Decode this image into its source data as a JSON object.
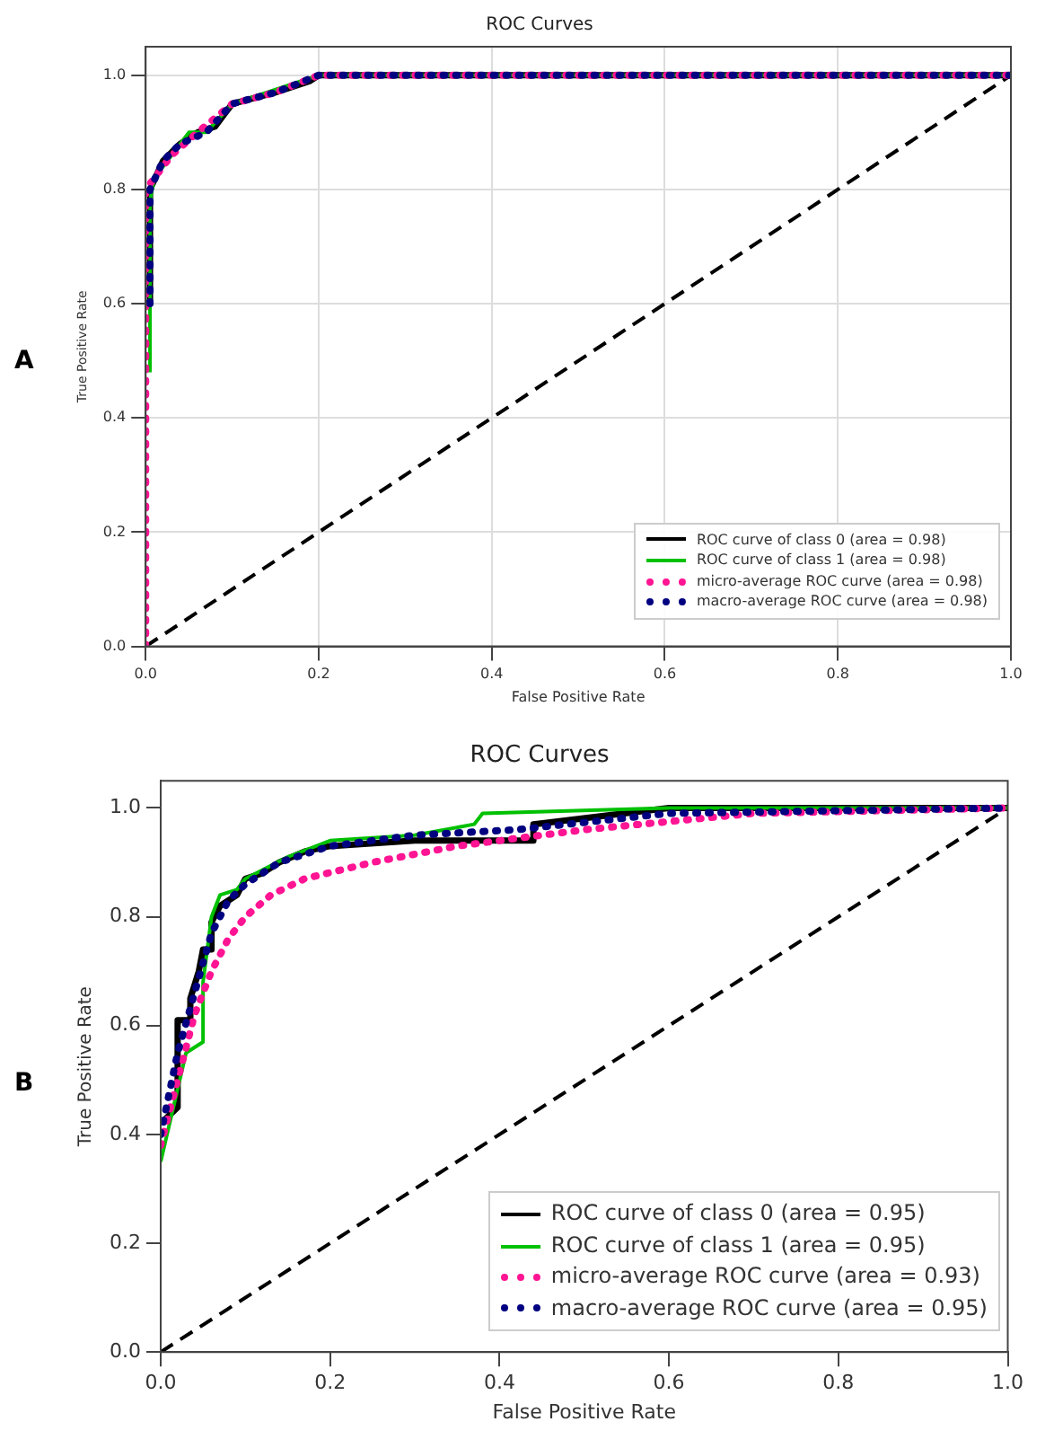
{
  "chart_data": [
    {
      "type": "line",
      "title": "ROC Curves",
      "xlabel": "False Positive Rate",
      "ylabel": "True Positive Rate",
      "annotations": [
        "A"
      ],
      "xlim": [
        0,
        1
      ],
      "ylim": [
        0,
        1.05
      ],
      "xticks": [
        {
          "value": 0,
          "label": "0.0"
        },
        {
          "value": 0.2,
          "label": "0.2"
        },
        {
          "value": 0.4,
          "label": "0.4"
        },
        {
          "value": 0.6,
          "label": "0.6"
        },
        {
          "value": 0.8,
          "label": "0.8"
        },
        {
          "value": 1,
          "label": "1.0"
        }
      ],
      "yticks": [
        {
          "value": 0,
          "label": "0.0"
        },
        {
          "value": 0.2,
          "label": "0.2"
        },
        {
          "value": 0.4,
          "label": "0.4"
        },
        {
          "value": 0.6,
          "label": "0.6"
        },
        {
          "value": 0.8,
          "label": "0.8"
        },
        {
          "value": 1,
          "label": "1.0"
        }
      ],
      "grid": true,
      "legend": "bottom right",
      "marker": "none",
      "series": [
        {
          "name": "ROC curve of class 0 (area = 0.98)",
          "color": "#000000",
          "line_style": "solid",
          "x": [
            0,
            0.005,
            0.005,
            0.02,
            0.04,
            0.06,
            0.08,
            0.1,
            0.15,
            0.19,
            0.2,
            1
          ],
          "values": [
            0.6,
            0.6,
            0.8,
            0.85,
            0.88,
            0.9,
            0.91,
            0.95,
            0.97,
            0.99,
            1,
            1
          ]
        },
        {
          "name": "ROC curve of class 1 (area = 0.98)",
          "color": "#00c000",
          "line_style": "solid",
          "x": [
            0.005,
            0.005,
            0.01,
            0.03,
            0.05,
            0.07,
            0.1,
            0.14,
            0.18,
            0.2,
            1
          ],
          "values": [
            0.48,
            0.78,
            0.82,
            0.86,
            0.9,
            0.9,
            0.95,
            0.97,
            0.99,
            1,
            1
          ]
        },
        {
          "name": "micro-average ROC curve (area = 0.98)",
          "color": "#ff1493",
          "line_style": "dotted",
          "x": [
            0,
            0,
            0.01,
            0.03,
            0.06,
            0.1,
            0.15,
            0.2,
            1
          ],
          "values": [
            0,
            0.8,
            0.82,
            0.86,
            0.9,
            0.95,
            0.97,
            1,
            1
          ]
        },
        {
          "name": "macro-average ROC curve (area = 0.98)",
          "color": "#000080",
          "line_style": "dotted",
          "x": [
            0.005,
            0.005,
            0.02,
            0.04,
            0.07,
            0.1,
            0.15,
            0.2,
            1
          ],
          "values": [
            0.6,
            0.8,
            0.85,
            0.88,
            0.9,
            0.95,
            0.97,
            1,
            1
          ]
        },
        {
          "color": "#000000",
          "line_style": "dashed",
          "x": [
            0,
            1
          ],
          "values": [
            0,
            1
          ]
        }
      ]
    },
    {
      "type": "line",
      "title": "ROC Curves",
      "xlabel": "False Positive Rate",
      "ylabel": "True Positive Rate",
      "annotations": [
        "B"
      ],
      "xlim": [
        0,
        1
      ],
      "ylim": [
        0,
        1.05
      ],
      "xticks": [
        {
          "value": 0,
          "label": "0.0"
        },
        {
          "value": 0.2,
          "label": "0.2"
        },
        {
          "value": 0.4,
          "label": "0.4"
        },
        {
          "value": 0.6,
          "label": "0.6"
        },
        {
          "value": 0.8,
          "label": "0.8"
        },
        {
          "value": 1,
          "label": "1.0"
        }
      ],
      "yticks": [
        {
          "value": 0,
          "label": "0.0"
        },
        {
          "value": 0.2,
          "label": "0.2"
        },
        {
          "value": 0.4,
          "label": "0.4"
        },
        {
          "value": 0.6,
          "label": "0.6"
        },
        {
          "value": 0.8,
          "label": "0.8"
        },
        {
          "value": 1,
          "label": "1.0"
        }
      ],
      "grid": false,
      "legend": "bottom right",
      "marker": "none",
      "series": [
        {
          "name": "ROC curve of class 0 (area = 0.95)",
          "color": "#000000",
          "line_style": "solid",
          "x": [
            0,
            0.02,
            0.02,
            0.035,
            0.035,
            0.045,
            0.05,
            0.06,
            0.06,
            0.07,
            0.09,
            0.1,
            0.12,
            0.14,
            0.17,
            0.2,
            0.3,
            0.44,
            0.44,
            0.6,
            1
          ],
          "values": [
            0.42,
            0.45,
            0.61,
            0.61,
            0.65,
            0.7,
            0.74,
            0.74,
            0.79,
            0.82,
            0.84,
            0.87,
            0.88,
            0.9,
            0.92,
            0.93,
            0.94,
            0.94,
            0.97,
            1,
            1
          ]
        },
        {
          "name": "ROC curve of class 1 (area = 0.95)",
          "color": "#00c000",
          "line_style": "solid",
          "x": [
            0,
            0.03,
            0.05,
            0.05,
            0.06,
            0.07,
            0.09,
            0.1,
            0.15,
            0.2,
            0.3,
            0.37,
            0.38,
            0.6,
            1
          ],
          "values": [
            0.35,
            0.55,
            0.57,
            0.68,
            0.8,
            0.84,
            0.85,
            0.87,
            0.91,
            0.94,
            0.95,
            0.97,
            0.99,
            1,
            1
          ]
        },
        {
          "name": "micro-average ROC curve (area = 0.93)",
          "color": "#ff1493",
          "line_style": "dotted",
          "x": [
            0,
            0.02,
            0.04,
            0.06,
            0.08,
            0.1,
            0.13,
            0.17,
            0.25,
            0.35,
            0.5,
            0.7,
            1
          ],
          "values": [
            0.38,
            0.5,
            0.62,
            0.7,
            0.76,
            0.8,
            0.84,
            0.87,
            0.9,
            0.93,
            0.96,
            0.99,
            1
          ]
        },
        {
          "name": "macro-average ROC curve (area = 0.95)",
          "color": "#000080",
          "line_style": "dotted",
          "x": [
            0,
            0.02,
            0.04,
            0.06,
            0.08,
            0.1,
            0.14,
            0.2,
            0.3,
            0.42,
            0.6,
            1
          ],
          "values": [
            0.4,
            0.55,
            0.66,
            0.77,
            0.83,
            0.86,
            0.9,
            0.93,
            0.95,
            0.96,
            0.99,
            1
          ]
        },
        {
          "color": "#000000",
          "line_style": "dashed",
          "x": [
            0,
            1
          ],
          "values": [
            0,
            1
          ]
        }
      ]
    }
  ]
}
